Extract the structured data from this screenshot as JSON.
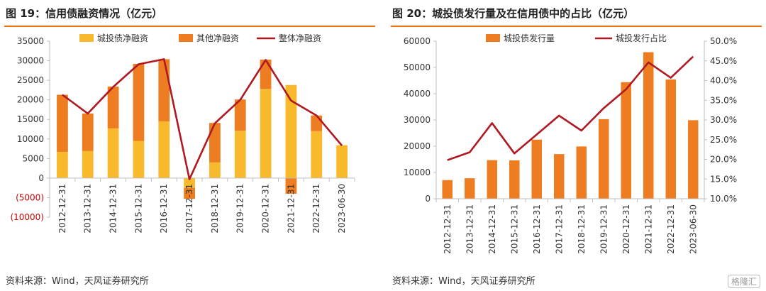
{
  "watermark": "格隆汇",
  "left": {
    "title": "图 19：信用债融资情况（亿元）",
    "source": "资料来源：Wind，天风证券研究所"
  },
  "right": {
    "title": "图 20：城投债发行量及在信用债中的占比（亿元）",
    "source": "资料来源：Wind，天风证券研究所"
  },
  "colors": {
    "accent": "#e8720c",
    "yellow": "#f9b92d",
    "orange": "#ee7d22",
    "darkred": "#b01822",
    "negative_label": "#cc0000"
  },
  "chart_data": [
    {
      "type": "bar",
      "stacked": true,
      "title": "图 19：信用债融资情况（亿元）",
      "categories": [
        "2012-12-31",
        "2013-12-31",
        "2014-12-31",
        "2015-12-31",
        "2016-12-31",
        "2017-12-31",
        "2018-12-31",
        "2019-12-31",
        "2020-12-31",
        "2021-12-31",
        "2022-12-31",
        "2023-06-30"
      ],
      "series": [
        {
          "name": "城投债净融资",
          "type": "bar",
          "values": [
            6700,
            6900,
            12700,
            9500,
            14500,
            -2500,
            4000,
            12100,
            22800,
            23800,
            12000,
            8400
          ]
        },
        {
          "name": "其他净融资",
          "type": "bar",
          "values": [
            14600,
            9600,
            10700,
            19700,
            15900,
            -2800,
            10100,
            8000,
            7500,
            -4000,
            4000,
            0
          ]
        },
        {
          "name": "整体净融资",
          "type": "line",
          "values": [
            21300,
            16500,
            23300,
            29100,
            30400,
            -300,
            14000,
            20000,
            30200,
            19800,
            16000,
            8300
          ]
        }
      ],
      "y_ticks": [
        "35000",
        "30000",
        "25000",
        "20000",
        "15000",
        "10000",
        "5000",
        "0",
        "(5000)",
        "(10000)"
      ],
      "ylim": [
        -10000,
        35000
      ]
    },
    {
      "type": "bar",
      "title": "图 20：城投债发行量及在信用债中的占比（亿元）",
      "categories": [
        "2012-12-31",
        "2013-12-31",
        "2014-12-31",
        "2015-12-31",
        "2016-12-31",
        "2017-12-31",
        "2018-12-31",
        "2019-12-31",
        "2020-12-31",
        "2021-12-31",
        "2022-12-31",
        "2023-06-30"
      ],
      "series": [
        {
          "name": "城投债发行量",
          "type": "bar",
          "axis": "left",
          "values": [
            7100,
            7800,
            14700,
            14600,
            22500,
            17000,
            19900,
            30300,
            44400,
            55800,
            45400,
            29900
          ]
        },
        {
          "name": "城投发行占比",
          "type": "line",
          "axis": "right",
          "values": [
            19.8,
            21.8,
            29.2,
            21.5,
            26.3,
            31.1,
            27.3,
            33.0,
            37.8,
            44.6,
            40.7,
            46.1
          ]
        }
      ],
      "y_ticks": [
        "60000",
        "50000",
        "40000",
        "30000",
        "20000",
        "10000",
        "0"
      ],
      "y2_ticks": [
        "50.0%",
        "45.0%",
        "40.0%",
        "35.0%",
        "30.0%",
        "25.0%",
        "20.0%",
        "15.0%",
        "10.0%"
      ],
      "ylim": [
        0,
        60000
      ],
      "y2lim": [
        10,
        50
      ]
    }
  ]
}
